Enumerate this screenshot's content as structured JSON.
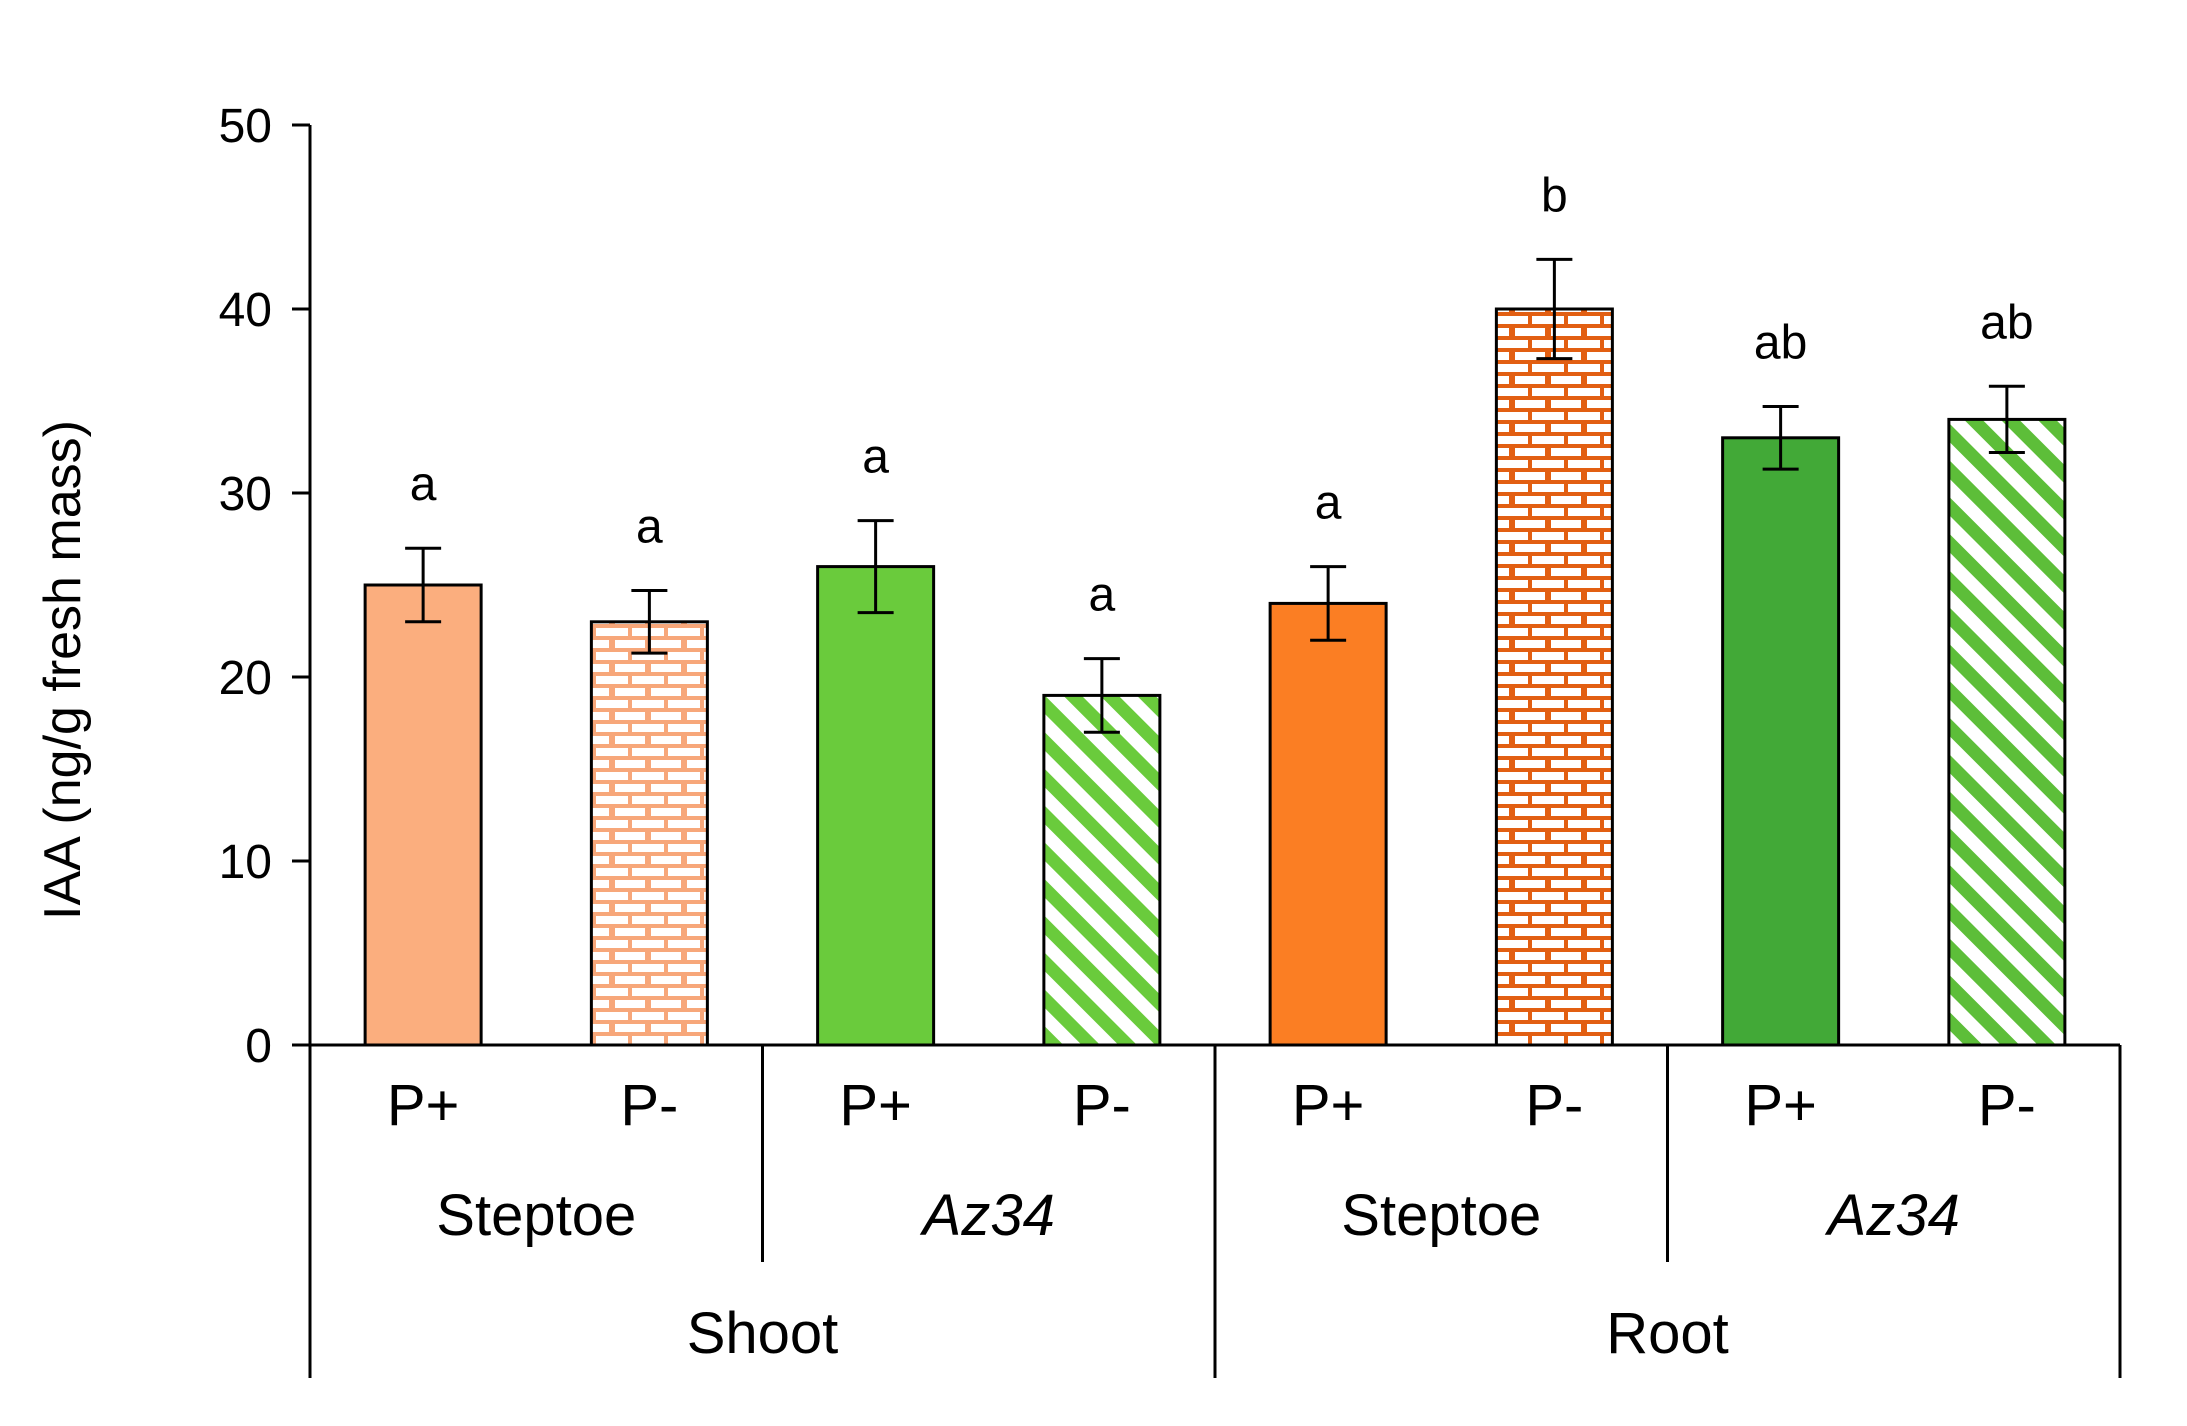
{
  "chart_data": {
    "type": "bar",
    "title": "",
    "xlabel": "",
    "ylabel": "IAA (ng/g fresh mass)",
    "ylim": [
      0,
      50
    ],
    "yticks": [
      0,
      10,
      20,
      30,
      40,
      50
    ],
    "bars": [
      {
        "tissue": "Shoot",
        "genotype": "Steptoe",
        "treatment": "P+",
        "value": 25,
        "error": 2,
        "sig": "a",
        "color": "#FBAE7E",
        "pattern": "solid"
      },
      {
        "tissue": "Shoot",
        "genotype": "Steptoe",
        "treatment": "P-",
        "value": 23,
        "error": 1.7,
        "sig": "a",
        "color": "#F7A77A",
        "pattern": "brick"
      },
      {
        "tissue": "Shoot",
        "genotype": "Az34",
        "treatment": "P+",
        "value": 26,
        "error": 2.5,
        "sig": "a",
        "color": "#6ACB3C",
        "pattern": "solid"
      },
      {
        "tissue": "Shoot",
        "genotype": "Az34",
        "treatment": "P-",
        "value": 19,
        "error": 2,
        "sig": "a",
        "color": "#6ACB3C",
        "pattern": "diagonal"
      },
      {
        "tissue": "Root",
        "genotype": "Steptoe",
        "treatment": "P+",
        "value": 24,
        "error": 2,
        "sig": "a",
        "color": "#FB7E23",
        "pattern": "solid"
      },
      {
        "tissue": "Root",
        "genotype": "Steptoe",
        "treatment": "P-",
        "value": 40,
        "error": 2.7,
        "sig": "b",
        "color": "#E25F12",
        "pattern": "brick"
      },
      {
        "tissue": "Root",
        "genotype": "Az34",
        "treatment": "P+",
        "value": 33,
        "error": 1.7,
        "sig": "ab",
        "color": "#42A937",
        "pattern": "solid"
      },
      {
        "tissue": "Root",
        "genotype": "Az34",
        "treatment": "P-",
        "value": 34,
        "error": 1.8,
        "sig": "ab",
        "color": "#5DBE39",
        "pattern": "diagonal"
      }
    ],
    "genotype_groups": [
      {
        "label": "Steptoe",
        "italic": false
      },
      {
        "label": "Az34",
        "italic": true
      },
      {
        "label": "Steptoe",
        "italic": false
      },
      {
        "label": "Az34",
        "italic": true
      }
    ],
    "tissue_groups": [
      "Shoot",
      "Root"
    ]
  }
}
